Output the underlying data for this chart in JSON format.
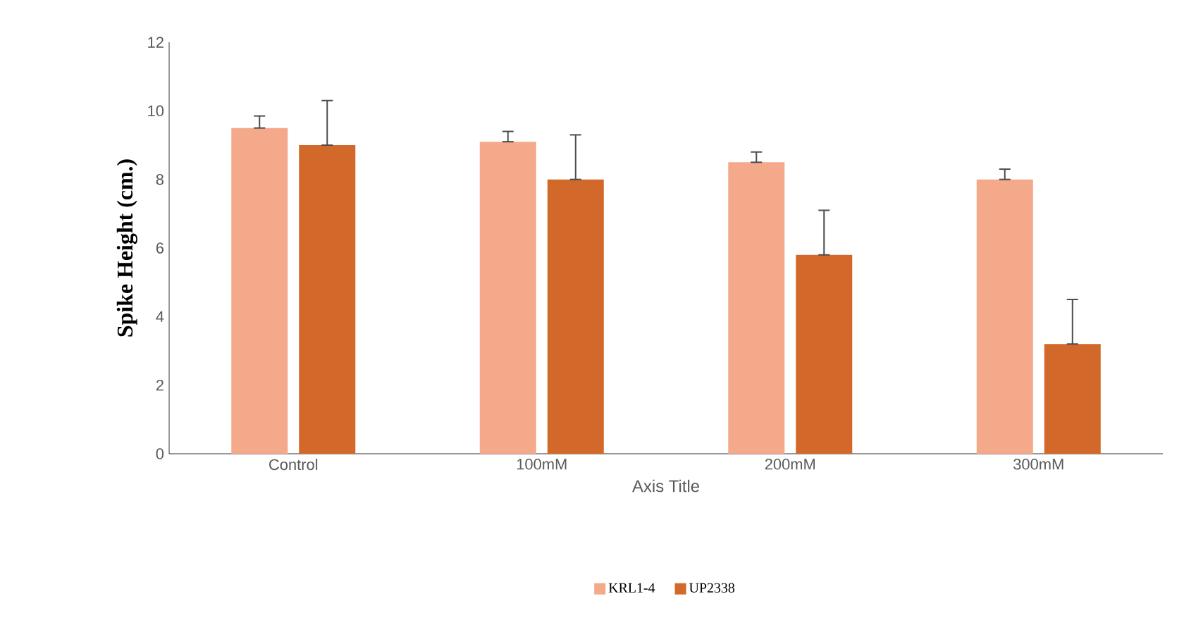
{
  "chart_data": {
    "type": "bar",
    "xlabel": "Axis Title",
    "ylabel": "Spike Height (cm.)",
    "categories": [
      "Control",
      "100mM",
      "200mM",
      "300mM"
    ],
    "series": [
      {
        "name": "KRL1-4",
        "color": "#f4a98a",
        "values": [
          9.5,
          9.1,
          8.5,
          8.0
        ],
        "errors": [
          [
            9.5,
            9.85
          ],
          [
            9.1,
            9.4
          ],
          [
            8.5,
            8.8
          ],
          [
            8.0,
            8.3
          ]
        ]
      },
      {
        "name": "UP2338",
        "color": "#d2692a",
        "values": [
          9.0,
          8.0,
          5.8,
          3.2
        ],
        "errors": [
          [
            9.0,
            10.3
          ],
          [
            8.0,
            9.3
          ],
          [
            5.8,
            7.1
          ],
          [
            3.2,
            4.5
          ]
        ]
      }
    ],
    "ylim": [
      0,
      12
    ],
    "yticks": [
      0,
      2,
      4,
      6,
      8,
      10,
      12
    ],
    "grid": false,
    "legend": "bottom"
  }
}
